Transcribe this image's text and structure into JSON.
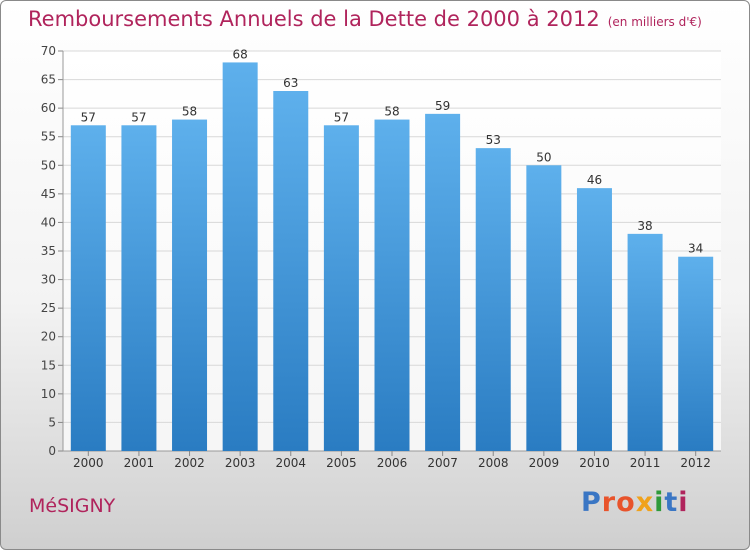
{
  "header": {
    "title": "Remboursements Annuels de la Dette de 2000 à 2012",
    "unit": "(en milliers d'€)"
  },
  "footer": {
    "commune": "MéSIGNY",
    "logo_text": "Proxiti",
    "logo_colors": [
      "#3a76c4",
      "#e8532b",
      "#e8532b",
      "#f0a21c",
      "#2e9a3a",
      "#3a76c4",
      "#b0245c"
    ]
  },
  "chart_data": {
    "type": "bar",
    "categories": [
      "2000",
      "2001",
      "2002",
      "2003",
      "2004",
      "2005",
      "2006",
      "2007",
      "2008",
      "2009",
      "2010",
      "2011",
      "2012"
    ],
    "values": [
      57,
      57,
      58,
      68,
      63,
      57,
      58,
      59,
      53,
      50,
      46,
      38,
      34
    ],
    "ylim": [
      0,
      70
    ],
    "yticks": [
      0,
      5,
      10,
      15,
      20,
      25,
      30,
      35,
      40,
      45,
      50,
      55,
      60,
      65,
      70
    ],
    "grid": true,
    "bar_color_top": "#5eb0ec",
    "bar_color_bottom": "#2a7cc2"
  }
}
